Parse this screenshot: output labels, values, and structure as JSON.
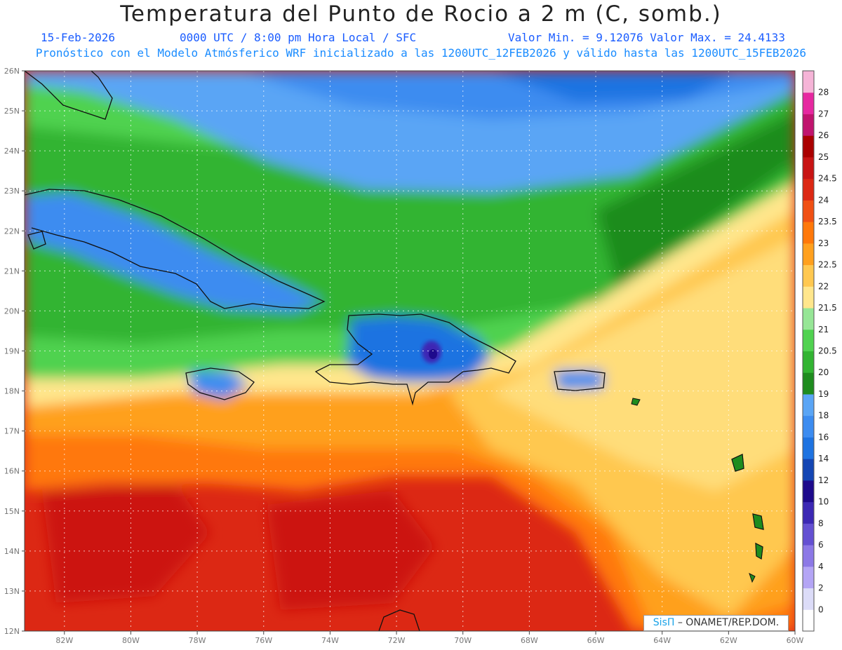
{
  "title": "Temperatura del Punto de Rocio a 2 m (C, somb.)",
  "subtitle": {
    "date": "15-Feb-2026",
    "time": "0000 UTC / 8:00 pm Hora Local / SFC",
    "minmax": "Valor Min. = 9.12076  Valor Max. = 24.4133"
  },
  "model_line": "Pronóstico con el Modelo Atmósferico WRF inicializado a las 1200UTC_12FEB2026 y válido hasta las  1200UTC_15FEB2026",
  "credit": {
    "brand": "SisΠ",
    "text": " – ONAMET/REP.DOM."
  },
  "axes": {
    "lon_labels": [
      "82W",
      "80W",
      "78W",
      "76W",
      "74W",
      "72W",
      "70W",
      "68W",
      "66W",
      "64W",
      "62W",
      "60W"
    ],
    "lat_labels": [
      "26N",
      "25N",
      "24N",
      "23N",
      "22N",
      "21N",
      "20N",
      "19N",
      "18N",
      "17N",
      "16N",
      "15N",
      "14N",
      "13N",
      "12N"
    ],
    "lon_range": [
      -83.2,
      -60
    ],
    "lat_range": [
      12,
      26
    ]
  },
  "colorbar": {
    "labels": [
      "0",
      "2",
      "4",
      "6",
      "8",
      "10",
      "12",
      "14",
      "16",
      "18",
      "19",
      "20",
      "20.5",
      "21",
      "21.5",
      "22",
      "22.5",
      "23",
      "23.5",
      "24",
      "24.5",
      "25",
      "26",
      "27",
      "28"
    ],
    "colors": [
      "#ffffff",
      "#dcdcf8",
      "#b4a5f5",
      "#8c78e6",
      "#6450d2",
      "#3c28b4",
      "#1e0a8c",
      "#1446b4",
      "#1e73e1",
      "#3c8cf0",
      "#5aa5f5",
      "#1e8c1e",
      "#32b432",
      "#50d250",
      "#96e696",
      "#ffe68c",
      "#ffc850",
      "#ffa01e",
      "#ff780a",
      "#f05014",
      "#dc2814",
      "#c81414",
      "#aa0000",
      "#c0146e",
      "#e628a0",
      "#f5b4d7"
    ]
  },
  "regions": {
    "north_atlantic": "blue",
    "cuba_hispaniola_interior": "blue",
    "central_band": "green",
    "southeast": "orange",
    "southern_caribbean": "red"
  }
}
